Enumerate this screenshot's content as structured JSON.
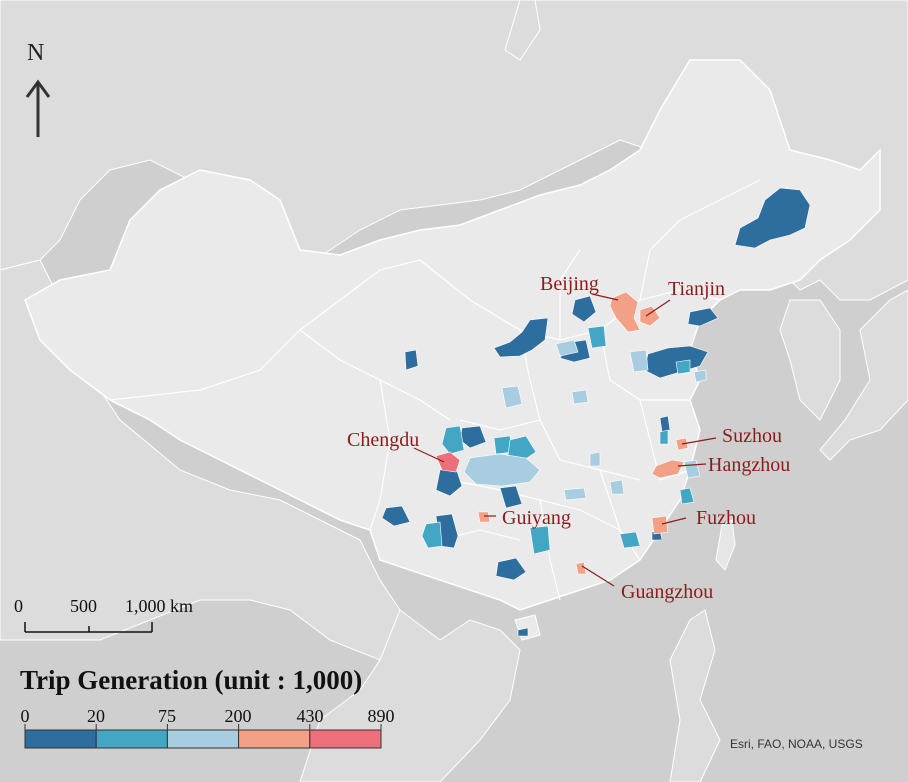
{
  "map": {
    "north_label": "N",
    "scale_bar": {
      "ticks": [
        "0",
        "500",
        "1,000 km"
      ]
    },
    "legend": {
      "title": "Trip Generation (unit : 1,000)",
      "breaks": [
        "0",
        "20",
        "75",
        "200",
        "430",
        "890"
      ],
      "colors": [
        "#2e6e9e",
        "#42a6c4",
        "#a8cce0",
        "#f2a186",
        "#ec6f7a"
      ]
    },
    "cities": [
      {
        "name": "Beijing",
        "class": 4
      },
      {
        "name": "Tianjin",
        "class": 4
      },
      {
        "name": "Chengdu",
        "class": 5
      },
      {
        "name": "Suzhou",
        "class": 4
      },
      {
        "name": "Hangzhou",
        "class": 4
      },
      {
        "name": "Guiyang",
        "class": 4
      },
      {
        "name": "Fuzhou",
        "class": 4
      },
      {
        "name": "Guangzhou",
        "class": 4
      }
    ],
    "colors": {
      "background": "#d4d4d4",
      "china": "#eaeaea",
      "neighbors": "#dcdcdc",
      "borders": "#ffffff",
      "label": "#8e1b1b"
    },
    "attribution": "Esri, FAO, NOAA, USGS"
  }
}
